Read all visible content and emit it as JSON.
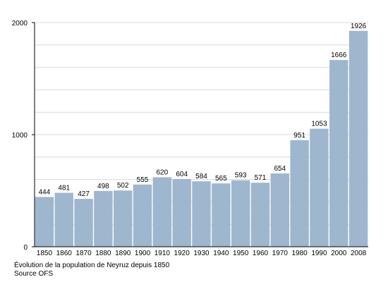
{
  "chart_data": {
    "type": "bar",
    "categories": [
      "1850",
      "1860",
      "1870",
      "1880",
      "1890",
      "1900",
      "1910",
      "1920",
      "1930",
      "1940",
      "1950",
      "1960",
      "1970",
      "1980",
      "1990",
      "2000",
      "2008"
    ],
    "values": [
      444,
      481,
      427,
      498,
      502,
      555,
      620,
      604,
      584,
      565,
      593,
      571,
      654,
      951,
      1053,
      1666,
      1926
    ],
    "ylim": [
      0,
      2000
    ],
    "yticks": [
      "0",
      "1000",
      "2000"
    ],
    "grid": true,
    "legend": "none",
    "bar_color": "#9fb6cf",
    "title": "Évolution de la population de Neyruz depuis 1850",
    "source": "Source OFS"
  }
}
